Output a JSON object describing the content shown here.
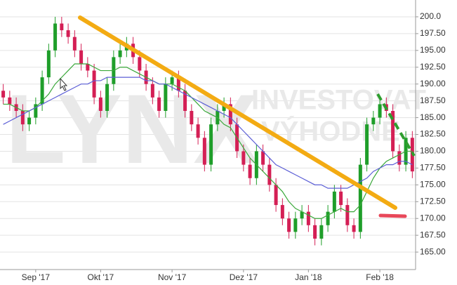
{
  "chart_data": {
    "type": "candlestick",
    "watermark": [
      "LYNX",
      "INVESTOVAT",
      "VÝHODNĚ"
    ],
    "categories": [
      null,
      null,
      null,
      null,
      null,
      "Sep '17",
      null,
      null,
      null,
      null,
      null,
      null,
      null,
      null,
      null,
      "Okt '17",
      null,
      null,
      null,
      null,
      null,
      null,
      null,
      null,
      null,
      null,
      "Nov '17",
      null,
      null,
      null,
      null,
      null,
      null,
      null,
      null,
      null,
      null,
      "Dez '17",
      null,
      null,
      null,
      null,
      null,
      null,
      null,
      null,
      null,
      "Jan '18",
      null,
      null,
      null,
      null,
      null,
      null,
      null,
      null,
      null,
      null,
      "Feb '18",
      null,
      null,
      null,
      null,
      null
    ],
    "open": [
      189,
      188,
      187,
      186,
      184,
      185,
      187,
      191,
      195,
      199,
      198,
      197,
      195,
      193,
      192,
      188,
      186,
      190,
      194,
      195,
      196,
      194,
      192,
      190,
      188,
      186,
      190,
      191,
      189,
      186,
      184,
      182,
      178,
      184,
      186,
      187,
      184,
      180,
      178,
      176,
      180,
      178,
      175,
      172,
      170,
      168,
      170,
      171,
      169,
      167,
      169,
      171,
      174,
      172,
      169,
      168,
      178,
      184,
      185,
      187,
      186,
      180,
      178,
      182
    ],
    "high": [
      190,
      189,
      188,
      187,
      186,
      188,
      192,
      196,
      200,
      200,
      199,
      198,
      196,
      194,
      193,
      189,
      191,
      195,
      196,
      197,
      197,
      195,
      193,
      191,
      189,
      191,
      192,
      192,
      190,
      187,
      185,
      183,
      185,
      187,
      188,
      188,
      185,
      181,
      179,
      181,
      181,
      179,
      176,
      173,
      171,
      171,
      172,
      172,
      170,
      170,
      172,
      175,
      175,
      173,
      170,
      179,
      185,
      186,
      188,
      188,
      187,
      181,
      183,
      183
    ],
    "low": [
      187,
      186,
      185,
      183,
      183,
      184,
      186,
      190,
      194,
      197,
      196,
      194,
      192,
      191,
      187,
      185,
      185,
      189,
      193,
      194,
      193,
      191,
      189,
      187,
      185,
      185,
      189,
      188,
      185,
      183,
      181,
      177,
      177,
      183,
      185,
      183,
      179,
      177,
      175,
      175,
      177,
      174,
      171,
      169,
      167,
      167,
      169,
      168,
      166,
      166,
      168,
      170,
      171,
      168,
      167,
      167,
      177,
      183,
      184,
      185,
      179,
      177,
      177,
      176
    ],
    "close": [
      188,
      187,
      186,
      184,
      185,
      187,
      191,
      195,
      199,
      198,
      197,
      195,
      193,
      192,
      188,
      186,
      190,
      194,
      195,
      196,
      194,
      192,
      190,
      188,
      186,
      190,
      191,
      189,
      186,
      184,
      182,
      178,
      184,
      186,
      187,
      184,
      180,
      178,
      176,
      180,
      178,
      175,
      172,
      170,
      168,
      170,
      171,
      169,
      167,
      169,
      171,
      174,
      172,
      169,
      168,
      178,
      184,
      185,
      187,
      186,
      180,
      178,
      182,
      177
    ],
    "up_color": "#1f9e2a",
    "down_color": "#d41f55",
    "series": [
      {
        "color": "#3aa83a",
        "values": [
          187,
          187,
          186.5,
          186,
          186,
          186.5,
          187.5,
          188.5,
          190,
          191,
          192,
          193,
          193,
          193,
          192.5,
          192,
          192,
          192,
          192.5,
          192.5,
          192,
          191.5,
          191,
          190.5,
          190,
          190,
          190,
          189.5,
          189,
          188,
          187,
          186,
          185.5,
          185,
          184,
          183.5,
          182,
          180.5,
          179,
          178,
          177,
          176,
          175,
          174,
          172.5,
          171.5,
          171,
          170.5,
          170,
          170,
          170.5,
          171,
          171.5,
          171,
          171,
          172,
          174,
          176,
          177.5,
          178.5,
          179,
          179.5,
          180,
          180
        ]
      },
      {
        "color": "#5c5fd6",
        "values": [
          184,
          184.5,
          185,
          185.5,
          186,
          186.5,
          187,
          187.5,
          188,
          188.5,
          189,
          189.5,
          190,
          190,
          190.5,
          190.5,
          191,
          191,
          191,
          191,
          191,
          191,
          190.5,
          190.5,
          190,
          190,
          189.5,
          189,
          188.5,
          188,
          187.5,
          187,
          186.5,
          186,
          185.5,
          185,
          184,
          183,
          182,
          181,
          180,
          179,
          178,
          177.5,
          177,
          176.5,
          176,
          175.5,
          175,
          175,
          174.5,
          174.5,
          174.5,
          174.5,
          175,
          175.5,
          176,
          177,
          177.5,
          178,
          178,
          178.5,
          178.5,
          178
        ]
      }
    ],
    "ylim": [
      162.4,
      202.5
    ],
    "yticks": [
      {
        "value": 165,
        "label": "165.00"
      },
      {
        "value": 167.5,
        "label": "167.50"
      },
      {
        "value": 170,
        "label": "170.00"
      },
      {
        "value": 172.5,
        "label": "172.50"
      },
      {
        "value": 175,
        "label": "175.00"
      },
      {
        "value": 177.5,
        "label": "177.50"
      },
      {
        "value": 180,
        "label": "180.00"
      },
      {
        "value": 182.5,
        "label": "182.50"
      },
      {
        "value": 185,
        "label": "185.00"
      },
      {
        "value": 187.5,
        "label": "187.50"
      },
      {
        "value": 190,
        "label": "190.00"
      },
      {
        "value": 192.5,
        "label": "192.50"
      },
      {
        "value": 195,
        "label": "195.00"
      },
      {
        "value": 197.5,
        "label": "197.50"
      },
      {
        "value": 200,
        "label": "200.0"
      }
    ],
    "grid": true
  }
}
